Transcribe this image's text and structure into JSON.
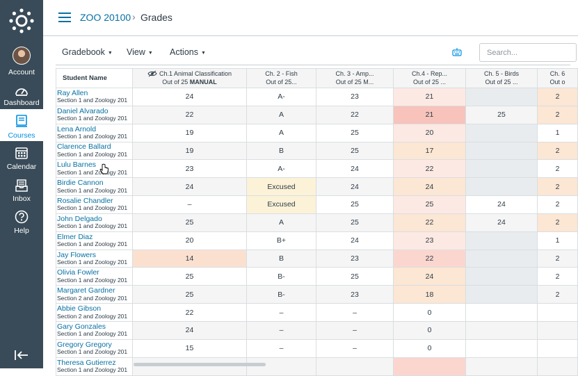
{
  "nav": {
    "items": [
      {
        "label": "Account",
        "icon": "avatar"
      },
      {
        "label": "Dashboard",
        "icon": "dashboard-icon"
      },
      {
        "label": "Courses",
        "icon": "courses-icon"
      },
      {
        "label": "Calendar",
        "icon": "calendar-icon"
      },
      {
        "label": "Inbox",
        "icon": "inbox-icon"
      },
      {
        "label": "Help",
        "icon": "help-icon"
      }
    ]
  },
  "header": {
    "course": "ZOO 20100",
    "separator": "›",
    "page": "Grades"
  },
  "toolbar": {
    "gradebook": "Gradebook",
    "view": "View",
    "actions": "Actions",
    "search_placeholder": "Search..."
  },
  "table": {
    "name_header": "Student Name",
    "columns": [
      {
        "title": "Ch.1 Animal Classification",
        "sub": "Out of 25",
        "sub_bold": "MANUAL"
      },
      {
        "title": "Ch. 2 - Fish",
        "sub": "Out of 25...",
        "sub_bold": ""
      },
      {
        "title": "Ch. 3 - Amp...",
        "sub": "Out of 25 M...",
        "sub_bold": ""
      },
      {
        "title": "Ch.4 - Rep...",
        "sub": "Out of 25 ...",
        "sub_bold": ""
      },
      {
        "title": "Ch. 5 - Birds",
        "sub": "Out of 25 ...",
        "sub_bold": ""
      },
      {
        "title": "Ch. 6",
        "sub": "Out o",
        "sub_bold": ""
      }
    ],
    "rows": [
      {
        "name": "Ray Allen",
        "section": "Section 1 and Zoology 201",
        "c1": "24",
        "c2": "A-",
        "c3": "23",
        "c4": "21",
        "c5": "",
        "c6": "2"
      },
      {
        "name": "Daniel Alvarado",
        "section": "Section 1 and Zoology 201",
        "c1": "22",
        "c2": "A",
        "c3": "22",
        "c4": "21",
        "c5": "25",
        "c6": "2"
      },
      {
        "name": "Lena Arnold",
        "section": "Section 1 and Zoology 201",
        "c1": "19",
        "c2": "A",
        "c3": "25",
        "c4": "20",
        "c5": "",
        "c6": "1"
      },
      {
        "name": "Clarence Ballard",
        "section": "Section 1 and Zoology 201",
        "c1": "19",
        "c2": "B",
        "c3": "25",
        "c4": "17",
        "c5": "",
        "c6": "2"
      },
      {
        "name": "Lulu Barnes",
        "section": "Section 1 and Zoology 201",
        "c1": "23",
        "c2": "A-",
        "c3": "24",
        "c4": "22",
        "c5": "",
        "c6": "2"
      },
      {
        "name": "Birdie Cannon",
        "section": "Section 1 and Zoology 201",
        "c1": "24",
        "c2": "Excused",
        "c3": "24",
        "c4": "24",
        "c5": "",
        "c6": "2"
      },
      {
        "name": "Rosalie Chandler",
        "section": "Section 1 and Zoology 201",
        "c1": "–",
        "c2": "Excused",
        "c3": "25",
        "c4": "25",
        "c5": "24",
        "c6": "2"
      },
      {
        "name": "John Delgado",
        "section": "Section 1 and Zoology 201",
        "c1": "25",
        "c2": "A",
        "c3": "25",
        "c4": "22",
        "c5": "24",
        "c6": "2"
      },
      {
        "name": "Elmer Diaz",
        "section": "Section 1 and Zoology 201",
        "c1": "20",
        "c2": "B+",
        "c3": "24",
        "c4": "23",
        "c5": "",
        "c6": "1"
      },
      {
        "name": "Jay Flowers",
        "section": "Section 1 and Zoology 201",
        "c1": "14",
        "c2": "B",
        "c3": "23",
        "c4": "22",
        "c5": "",
        "c6": "2"
      },
      {
        "name": "Olivia Fowler",
        "section": "Section 1 and Zoology 201",
        "c1": "25",
        "c2": "B-",
        "c3": "25",
        "c4": "24",
        "c5": "",
        "c6": "2"
      },
      {
        "name": "Margaret Gardner",
        "section": "Section 2 and Zoology 201",
        "c1": "25",
        "c2": "B-",
        "c3": "23",
        "c4": "18",
        "c5": "",
        "c6": "2"
      },
      {
        "name": "Abbie Gibson",
        "section": "Section 2 and Zoology 201",
        "c1": "22",
        "c2": "–",
        "c3": "–",
        "c4": "0",
        "c5": "",
        "c6": ""
      },
      {
        "name": "Gary Gonzales",
        "section": "Section 1 and Zoology 201",
        "c1": "24",
        "c2": "–",
        "c3": "–",
        "c4": "0",
        "c5": "",
        "c6": ""
      },
      {
        "name": "Gregory Gregory",
        "section": "Section 1 and Zoology 201",
        "c1": "15",
        "c2": "–",
        "c3": "–",
        "c4": "0",
        "c5": "",
        "c6": ""
      },
      {
        "name": "Theresa Gutierrez",
        "section": "Section 1 and Zoology 201",
        "c1": "",
        "c2": "",
        "c3": "",
        "c4": "",
        "c5": "",
        "c6": ""
      }
    ]
  },
  "colors": {
    "nav_bg": "#394b58",
    "link": "#0770a3",
    "active": "#008ee2",
    "excused": "#fcf2d8",
    "late": "#fbe0d0"
  }
}
